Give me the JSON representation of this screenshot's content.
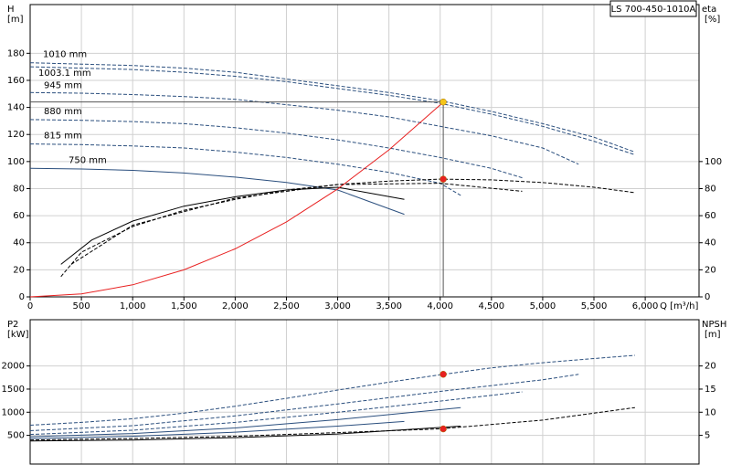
{
  "chart_data": [
    {
      "type": "line",
      "legend_box": "LS 700-450-1010A",
      "y_label": "H",
      "y_unit": "[m]",
      "y2_label": "eta",
      "y2_unit": "[%]",
      "x_label": "Q [m³/h]",
      "xlim": [
        0,
        6525
      ],
      "xticks": [
        0,
        500,
        {
          "value": 1000,
          "label": "1,000"
        },
        {
          "value": 1500,
          "label": "1,500"
        },
        {
          "value": 2000,
          "label": "2,000"
        },
        {
          "value": 2500,
          "label": "2,500"
        },
        {
          "value": 3000,
          "label": "3,000"
        },
        {
          "value": 3500,
          "label": "3,500"
        },
        {
          "value": 4000,
          "label": "4,000"
        },
        {
          "value": 4500,
          "label": "4,500"
        },
        {
          "value": 5000,
          "label": "5,000"
        },
        {
          "value": 5500,
          "label": "5,500"
        },
        {
          "value": 6000,
          "label": "6,000"
        }
      ],
      "ylim": [
        0,
        216
      ],
      "yticks": [
        0,
        20,
        40,
        60,
        80,
        100,
        120,
        140,
        160,
        180
      ],
      "y2lim": [
        0,
        216
      ],
      "y2ticks": [
        0,
        20,
        40,
        60,
        80,
        100
      ],
      "grid": true,
      "series": [
        {
          "name": "1010 mm",
          "color": "#2b4f7e",
          "dashed": true,
          "x": [
            0,
            500,
            1000,
            1500,
            2000,
            2500,
            3000,
            3500,
            4000,
            4500,
            5000,
            5500,
            5900
          ],
          "values": [
            173,
            172,
            171,
            169,
            166,
            161,
            156,
            151,
            145,
            137,
            128,
            118,
            107
          ]
        },
        {
          "name": "1003.1 mm",
          "color": "#2b4f7e",
          "dashed": true,
          "x": [
            0,
            500,
            1000,
            1500,
            2000,
            2500,
            3000,
            3500,
            4000,
            4500,
            5000,
            5500,
            5900
          ],
          "values": [
            170,
            169,
            168,
            166,
            163,
            159,
            154,
            149,
            143,
            135,
            126,
            115,
            105
          ]
        },
        {
          "name": "945 mm",
          "color": "#2b4f7e",
          "dashed": true,
          "x": [
            0,
            500,
            1000,
            1500,
            2000,
            2500,
            3000,
            3500,
            4000,
            4500,
            5000,
            5350
          ],
          "values": [
            151,
            150.5,
            149.5,
            148,
            146,
            142,
            138,
            133,
            126,
            119,
            110,
            98
          ]
        },
        {
          "name": "880 mm",
          "color": "#2b4f7e",
          "dashed": true,
          "x": [
            0,
            500,
            1000,
            1500,
            2000,
            2500,
            3000,
            3500,
            4000,
            4500,
            4800
          ],
          "values": [
            131,
            130.5,
            129.5,
            128,
            125,
            121,
            116,
            110,
            103,
            95,
            88
          ]
        },
        {
          "name": "815 mm",
          "color": "#2b4f7e",
          "dashed": true,
          "x": [
            0,
            500,
            1000,
            1500,
            2000,
            2500,
            3000,
            3500,
            4000,
            4200
          ],
          "values": [
            113,
            112.5,
            111.5,
            110,
            107,
            103,
            98,
            92,
            84,
            75
          ]
        },
        {
          "name": "750 mm",
          "color": "#2b4f7e",
          "dashed": false,
          "x": [
            0,
            500,
            1000,
            1500,
            2000,
            2500,
            3000,
            3650
          ],
          "values": [
            95,
            94.5,
            93.5,
            91.5,
            88.5,
            84.5,
            79,
            61
          ]
        },
        {
          "color": "#000000",
          "dashed": true,
          "axis": "y2",
          "x": [
            300,
            500,
            1000,
            1500,
            2000,
            2500,
            3000,
            3500,
            4000,
            4500,
            5000,
            5500,
            5900
          ],
          "values": [
            15,
            33,
            52,
            64,
            72,
            79,
            83,
            85.5,
            87,
            86.5,
            84.5,
            81,
            77
          ]
        },
        {
          "color": "#000000",
          "dashed": false,
          "axis": "y2",
          "x": [
            300,
            600,
            1000,
            1500,
            2000,
            2500,
            3000,
            3650
          ],
          "values": [
            24,
            42,
            56,
            67,
            74,
            79,
            81,
            72
          ]
        },
        {
          "color": "#000000",
          "dashed": true,
          "axis": "y2",
          "x": [
            400,
            1000,
            2000,
            3000,
            4000,
            4800
          ],
          "values": [
            24,
            53,
            73,
            83,
            84,
            78
          ]
        },
        {
          "color": "#e82020",
          "dashed": false,
          "x": [
            0,
            500,
            1000,
            1500,
            2000,
            2500,
            3000,
            3500,
            4000,
            4030
          ],
          "values": [
            0,
            2.2,
            8.9,
            20,
            35.5,
            55.4,
            79.8,
            108.6,
            141.8,
            144
          ]
        }
      ],
      "points": [
        {
          "x": 4030,
          "y": 144,
          "color": "#f5c518",
          "crosshair": true
        },
        {
          "x": 4030,
          "y": 87,
          "color": "#e82020",
          "axis": "y2"
        }
      ]
    },
    {
      "type": "line",
      "y_label": "P2",
      "y_unit": "[kW]",
      "y2_label": "NPSH",
      "y2_unit": "[m]",
      "xlim": [
        0,
        6525
      ],
      "xticks": [
        0,
        500,
        1000,
        1500,
        2000,
        2500,
        3000,
        3500,
        4000,
        4500,
        5000,
        5500,
        6000
      ],
      "ylim": [
        -120,
        3000
      ],
      "yticks": [
        500,
        1000,
        1500,
        2000
      ],
      "y2lim": [
        -1.2,
        30
      ],
      "y2ticks": [
        5,
        10,
        15,
        20
      ],
      "grid": true,
      "series": [
        {
          "color": "#2b4f7e",
          "dashed": true,
          "x": [
            0,
            500,
            1000,
            1500,
            2000,
            2500,
            3000,
            3500,
            4000,
            4500,
            5000,
            5500,
            5900
          ],
          "values": [
            720,
            780,
            860,
            980,
            1130,
            1300,
            1480,
            1650,
            1810,
            1960,
            2070,
            2160,
            2230
          ]
        },
        {
          "color": "#2b4f7e",
          "dashed": true,
          "x": [
            0,
            1000,
            2000,
            3000,
            4000,
            5000,
            5350
          ],
          "values": [
            600,
            710,
            920,
            1180,
            1450,
            1700,
            1820
          ]
        },
        {
          "color": "#2b4f7e",
          "dashed": true,
          "x": [
            0,
            1000,
            2000,
            3000,
            4000,
            4800
          ],
          "values": [
            520,
            610,
            780,
            1000,
            1240,
            1440
          ]
        },
        {
          "color": "#2b4f7e",
          "dashed": false,
          "x": [
            0,
            1000,
            2000,
            3000,
            4200
          ],
          "values": [
            470,
            540,
            660,
            840,
            1100
          ]
        },
        {
          "color": "#2b4f7e",
          "dashed": false,
          "x": [
            0,
            1000,
            2000,
            3000,
            3650
          ],
          "values": [
            430,
            480,
            570,
            700,
            800
          ]
        },
        {
          "color": "#000000",
          "dashed": true,
          "axis": "y2",
          "x": [
            0,
            1000,
            2000,
            3000,
            4000,
            5000,
            5900
          ],
          "values": [
            4,
            4.3,
            4.8,
            5.6,
            6.4,
            8.3,
            11
          ]
        },
        {
          "color": "#000000",
          "dashed": false,
          "axis": "y2",
          "x": [
            0,
            1000,
            2000,
            3000,
            4200
          ],
          "values": [
            3.8,
            4,
            4.5,
            5.3,
            7
          ]
        }
      ],
      "points": [
        {
          "x": 4030,
          "y": 1820,
          "color": "#e82020"
        },
        {
          "x": 4030,
          "y": 6.4,
          "color": "#e82020",
          "axis": "y2"
        }
      ]
    }
  ]
}
